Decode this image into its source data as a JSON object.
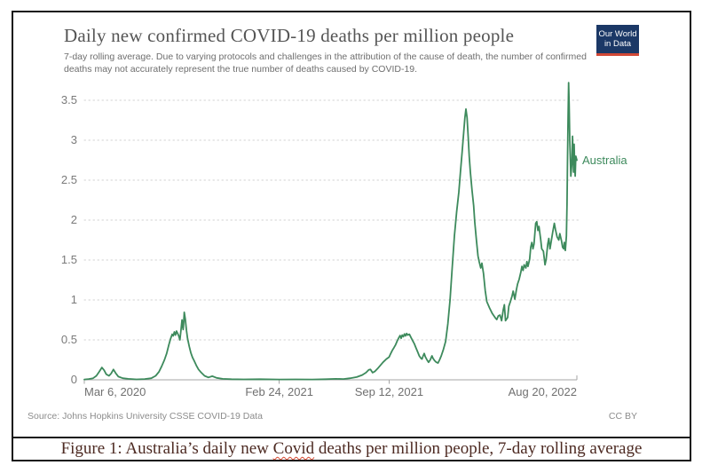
{
  "chart_data": {
    "type": "line",
    "title": "Daily new confirmed COVID-19 deaths per million people",
    "subtitle": "7-day rolling average. Due to varying protocols and challenges in the attribution of the cause of death, the number of confirmed deaths may not accurately represent the true number of deaths caused by COVID-19.",
    "source": "Source: Johns Hopkins University CSSE COVID-19 Data",
    "license": "CC BY",
    "xlabel": "",
    "ylabel": "",
    "grid": "dotted horizontal",
    "legend_position": "end-of-line label",
    "ylim": [
      0,
      3.9
    ],
    "y_ticks": [
      0,
      0.5,
      1,
      1.5,
      2,
      2.5,
      3,
      3.5
    ],
    "x_span_days": 897,
    "x_ticks": [
      {
        "label": "Mar 6, 2020",
        "day": 0,
        "align": "left"
      },
      {
        "label": "Feb 24, 2021",
        "day": 355,
        "align": "center"
      },
      {
        "label": "Sep 12, 2021",
        "day": 555,
        "align": "center"
      },
      {
        "label": "Aug 20, 2022",
        "day": 897,
        "align": "right"
      }
    ],
    "series": [
      {
        "name": "Australia",
        "color": "#3d8a5c",
        "points": [
          [
            0,
            0.005
          ],
          [
            8,
            0.01
          ],
          [
            16,
            0.02
          ],
          [
            22,
            0.05
          ],
          [
            27,
            0.1
          ],
          [
            32,
            0.155
          ],
          [
            36,
            0.12
          ],
          [
            40,
            0.07
          ],
          [
            45,
            0.05
          ],
          [
            49,
            0.08
          ],
          [
            53,
            0.13
          ],
          [
            57,
            0.085
          ],
          [
            62,
            0.04
          ],
          [
            70,
            0.02
          ],
          [
            80,
            0.012
          ],
          [
            95,
            0.006
          ],
          [
            110,
            0.01
          ],
          [
            122,
            0.02
          ],
          [
            130,
            0.05
          ],
          [
            136,
            0.1
          ],
          [
            141,
            0.17
          ],
          [
            146,
            0.25
          ],
          [
            150,
            0.33
          ],
          [
            154,
            0.44
          ],
          [
            157,
            0.51
          ],
          [
            160,
            0.57
          ],
          [
            162,
            0.55
          ],
          [
            164,
            0.6
          ],
          [
            166,
            0.56
          ],
          [
            168,
            0.61
          ],
          [
            170,
            0.58
          ],
          [
            172,
            0.55
          ],
          [
            174,
            0.5
          ],
          [
            176,
            0.62
          ],
          [
            178,
            0.75
          ],
          [
            179,
            0.67
          ],
          [
            180,
            0.63
          ],
          [
            181,
            0.72
          ],
          [
            182,
            0.845
          ],
          [
            184,
            0.76
          ],
          [
            186,
            0.62
          ],
          [
            188,
            0.52
          ],
          [
            191,
            0.42
          ],
          [
            194,
            0.34
          ],
          [
            197,
            0.28
          ],
          [
            200,
            0.24
          ],
          [
            204,
            0.18
          ],
          [
            208,
            0.13
          ],
          [
            213,
            0.09
          ],
          [
            219,
            0.05
          ],
          [
            226,
            0.03
          ],
          [
            233,
            0.045
          ],
          [
            241,
            0.025
          ],
          [
            252,
            0.012
          ],
          [
            268,
            0.008
          ],
          [
            290,
            0.006
          ],
          [
            320,
            0.008
          ],
          [
            355,
            0.005
          ],
          [
            385,
            0.006
          ],
          [
            415,
            0.005
          ],
          [
            440,
            0.008
          ],
          [
            458,
            0.012
          ],
          [
            472,
            0.01
          ],
          [
            484,
            0.02
          ],
          [
            496,
            0.035
          ],
          [
            506,
            0.06
          ],
          [
            513,
            0.09
          ],
          [
            518,
            0.125
          ],
          [
            521,
            0.13
          ],
          [
            525,
            0.09
          ],
          [
            529,
            0.105
          ],
          [
            534,
            0.14
          ],
          [
            539,
            0.18
          ],
          [
            544,
            0.22
          ],
          [
            550,
            0.26
          ],
          [
            555,
            0.285
          ],
          [
            558,
            0.33
          ],
          [
            561,
            0.37
          ],
          [
            564,
            0.405
          ],
          [
            567,
            0.44
          ],
          [
            570,
            0.49
          ],
          [
            573,
            0.53
          ],
          [
            575,
            0.555
          ],
          [
            577,
            0.52
          ],
          [
            579,
            0.56
          ],
          [
            581,
            0.54
          ],
          [
            583,
            0.575
          ],
          [
            585,
            0.55
          ],
          [
            587,
            0.58
          ],
          [
            589,
            0.56
          ],
          [
            592,
            0.57
          ],
          [
            595,
            0.53
          ],
          [
            598,
            0.49
          ],
          [
            601,
            0.45
          ],
          [
            604,
            0.4
          ],
          [
            607,
            0.35
          ],
          [
            610,
            0.3
          ],
          [
            613,
            0.27
          ],
          [
            615,
            0.26
          ],
          [
            617,
            0.3
          ],
          [
            619,
            0.33
          ],
          [
            621,
            0.29
          ],
          [
            624,
            0.25
          ],
          [
            627,
            0.22
          ],
          [
            630,
            0.25
          ],
          [
            633,
            0.3
          ],
          [
            635,
            0.27
          ],
          [
            638,
            0.24
          ],
          [
            641,
            0.22
          ],
          [
            644,
            0.21
          ],
          [
            647,
            0.25
          ],
          [
            650,
            0.3
          ],
          [
            654,
            0.38
          ],
          [
            658,
            0.48
          ],
          [
            662,
            0.7
          ],
          [
            666,
            1.0
          ],
          [
            670,
            1.4
          ],
          [
            674,
            1.8
          ],
          [
            678,
            2.1
          ],
          [
            682,
            2.35
          ],
          [
            685,
            2.6
          ],
          [
            688,
            2.85
          ],
          [
            691,
            3.1
          ],
          [
            693,
            3.28
          ],
          [
            695,
            3.39
          ],
          [
            697,
            3.28
          ],
          [
            699,
            3.05
          ],
          [
            701,
            2.8
          ],
          [
            703,
            2.6
          ],
          [
            706,
            2.38
          ],
          [
            709,
            2.18
          ],
          [
            711,
            1.98
          ],
          [
            714,
            1.75
          ],
          [
            717,
            1.55
          ],
          [
            719,
            1.48
          ],
          [
            722,
            1.4
          ],
          [
            724,
            1.46
          ],
          [
            727,
            1.33
          ],
          [
            730,
            1.12
          ],
          [
            733,
            0.98
          ],
          [
            738,
            0.9
          ],
          [
            743,
            0.83
          ],
          [
            748,
            0.78
          ],
          [
            751,
            0.755
          ],
          [
            754,
            0.8
          ],
          [
            757,
            0.81
          ],
          [
            760,
            0.74
          ],
          [
            763,
            0.88
          ],
          [
            765,
            0.94
          ],
          [
            767,
            0.74
          ],
          [
            771,
            0.78
          ],
          [
            773,
            0.92
          ],
          [
            776,
            0.98
          ],
          [
            779,
            1.05
          ],
          [
            781,
            1.11
          ],
          [
            784,
            1.01
          ],
          [
            787,
            1.13
          ],
          [
            789,
            1.2
          ],
          [
            792,
            1.26
          ],
          [
            795,
            1.35
          ],
          [
            797,
            1.42
          ],
          [
            799,
            1.37
          ],
          [
            801,
            1.44
          ],
          [
            804,
            1.4
          ],
          [
            806,
            1.48
          ],
          [
            808,
            1.42
          ],
          [
            811,
            1.51
          ],
          [
            813,
            1.66
          ],
          [
            815,
            1.72
          ],
          [
            817,
            1.64
          ],
          [
            819,
            1.7
          ],
          [
            822,
            1.96
          ],
          [
            824,
            1.98
          ],
          [
            826,
            1.87
          ],
          [
            828,
            1.92
          ],
          [
            831,
            1.76
          ],
          [
            833,
            1.64
          ],
          [
            836,
            1.61
          ],
          [
            839,
            1.44
          ],
          [
            841,
            1.51
          ],
          [
            844,
            1.7
          ],
          [
            846,
            1.77
          ],
          [
            848,
            1.64
          ],
          [
            850,
            1.72
          ],
          [
            853,
            1.85
          ],
          [
            856,
            1.96
          ],
          [
            858,
            1.88
          ],
          [
            861,
            1.79
          ],
          [
            864,
            1.75
          ],
          [
            866,
            1.83
          ],
          [
            869,
            1.74
          ],
          [
            871,
            1.66
          ],
          [
            873,
            1.64
          ],
          [
            874,
            1.72
          ],
          [
            876,
            1.62
          ],
          [
            878,
            1.8
          ],
          [
            879,
            2.2
          ],
          [
            880,
            2.8
          ],
          [
            881,
            3.3
          ],
          [
            882,
            3.72
          ],
          [
            883,
            3.45
          ],
          [
            884,
            3.0
          ],
          [
            886,
            2.55
          ],
          [
            888,
            2.72
          ],
          [
            889,
            3.05
          ],
          [
            890,
            2.8
          ],
          [
            891,
            2.6
          ],
          [
            892,
            2.95
          ],
          [
            893,
            2.7
          ],
          [
            894,
            2.55
          ],
          [
            895,
            2.8
          ],
          [
            897,
            2.75
          ]
        ]
      }
    ],
    "colors": {
      "line": "#3d8a5c",
      "gridline": "#d2d2d2",
      "axis": "#a5a5a5",
      "tick_text": "#707070"
    }
  },
  "logo": {
    "line1": "Our World",
    "line2": "in Data",
    "bg": "#1b3866",
    "accent": "#d14836"
  },
  "caption": {
    "prefix": "Figure 1: Australia’s daily new ",
    "highlight": "Covid",
    "suffix": " deaths per million people, 7-day rolling average",
    "color": "#4d2a22"
  }
}
